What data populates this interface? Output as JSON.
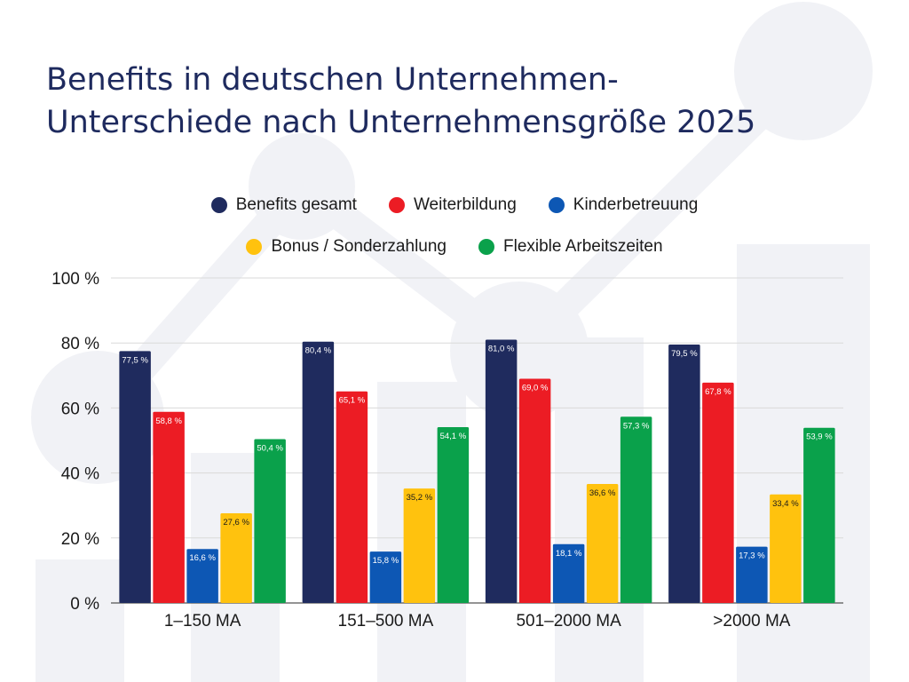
{
  "title": {
    "line1": "Benefits in deutschen Unternehmen-",
    "line2": "Unterschiede nach Unternehmensgröße 2025"
  },
  "colors": {
    "title": "#1e2a5e",
    "background_deco": "#f1f2f6"
  },
  "chart_data": {
    "type": "bar",
    "categories": [
      "1–150 MA",
      "151–500 MA",
      "501–2000 MA",
      ">2000 MA"
    ],
    "series": [
      {
        "name": "Benefits gesamt",
        "color": "#1f2b5e",
        "values": [
          77.5,
          80.4,
          81.0,
          79.5
        ],
        "labels": [
          "77,5 %",
          "80,4 %",
          "81,0 %",
          "79,5 %"
        ],
        "label_color": "#ffffff"
      },
      {
        "name": "Weiterbildung",
        "color": "#ec1c24",
        "values": [
          58.8,
          65.1,
          69.0,
          67.8
        ],
        "labels": [
          "58,8 %",
          "65,1 %",
          "69,0 %",
          "67,8 %"
        ],
        "label_color": "#ffffff"
      },
      {
        "name": "Kinderbetreuung",
        "color": "#0d57b4",
        "values": [
          16.6,
          15.8,
          18.1,
          17.3
        ],
        "labels": [
          "16,6 %",
          "15,8 %",
          "18,1 %",
          "17,3 %"
        ],
        "label_color": "#ffffff"
      },
      {
        "name": "Bonus / Sonderzahlung",
        "color": "#ffc20e",
        "values": [
          27.6,
          35.2,
          36.6,
          33.4
        ],
        "labels": [
          "27,6 %",
          "35,2 %",
          "36,6 %",
          "33,4 %"
        ],
        "label_color": "#1a1a1a"
      },
      {
        "name": "Flexible Arbeitszeiten",
        "color": "#0aa14b",
        "values": [
          50.4,
          54.1,
          57.3,
          53.9
        ],
        "labels": [
          "50,4 %",
          "54,1 %",
          "57,3 %",
          "53,9 %"
        ],
        "label_color": "#ffffff"
      }
    ],
    "yticks": [
      {
        "value": 0,
        "label": "0 %"
      },
      {
        "value": 20,
        "label": "20 %"
      },
      {
        "value": 40,
        "label": "40 %"
      },
      {
        "value": 60,
        "label": "60 %"
      },
      {
        "value": 80,
        "label": "80 %"
      },
      {
        "value": 100,
        "label": "100 %"
      }
    ],
    "ylim": [
      0,
      100
    ],
    "grid": true,
    "legend_position": "top-center",
    "xlabel": "",
    "ylabel": ""
  }
}
